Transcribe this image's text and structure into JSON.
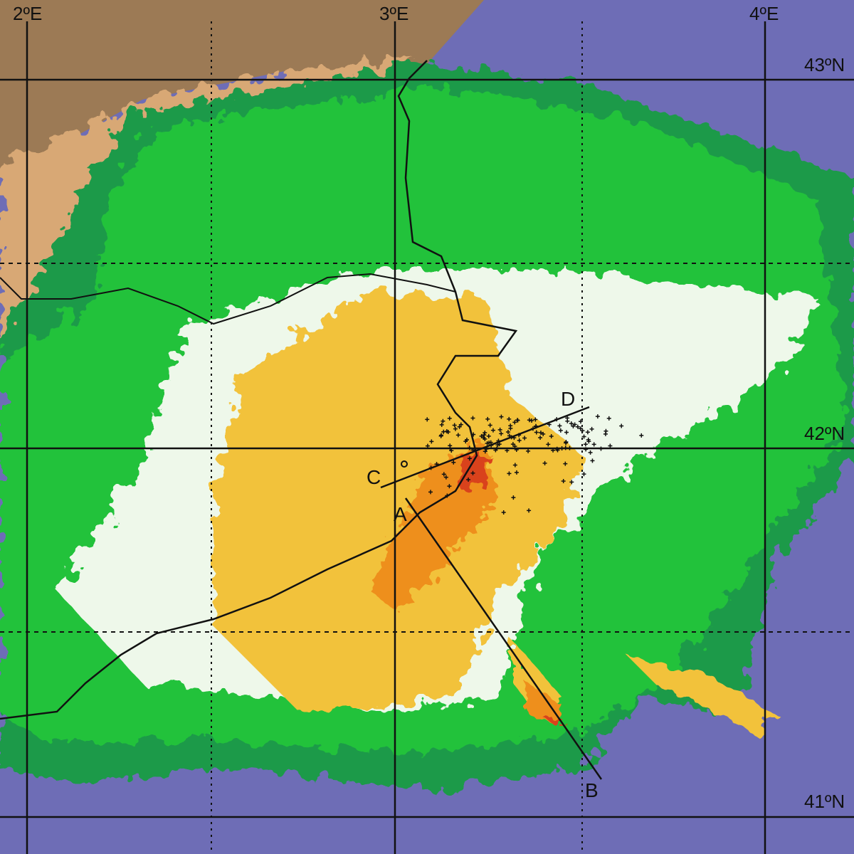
{
  "map": {
    "longitude_labels": [
      "2ºE",
      "3ºE",
      "4ºE"
    ],
    "latitude_labels": [
      "43ºN",
      "42ºN",
      "41ºN"
    ],
    "section_points": [
      "A",
      "B",
      "C",
      "D"
    ],
    "colors": {
      "sea": "#6e6db6",
      "land_dark": "#9c7a55",
      "land_light": "#d8a874",
      "echo_dark_green": "#1f9a4a",
      "echo_green": "#22c23a",
      "echo_cyan": "#23b3b3",
      "echo_white": "#eef8ea",
      "echo_yellow": "#f2c23a",
      "echo_orange": "#ee8f1c",
      "echo_red": "#d9421a"
    }
  }
}
